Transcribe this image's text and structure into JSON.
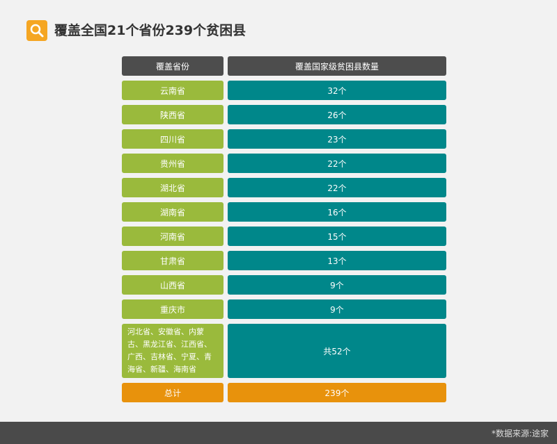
{
  "header": {
    "title": "覆盖全国21个省份239个贫困县"
  },
  "table": {
    "columns": [
      "覆盖省份",
      "覆盖国家级贫困县数量"
    ],
    "rows": [
      [
        "云南省",
        "32个"
      ],
      [
        "陕西省",
        "26个"
      ],
      [
        "四川省",
        "23个"
      ],
      [
        "贵州省",
        "22个"
      ],
      [
        "湖北省",
        "22个"
      ],
      [
        "湖南省",
        "16个"
      ],
      [
        "河南省",
        "15个"
      ],
      [
        "甘肃省",
        "13个"
      ],
      [
        "山西省",
        "9个"
      ],
      [
        "重庆市",
        "9个"
      ],
      [
        "河北省、安徽省、内蒙古、黑龙江省、江西省、广西、吉林省、宁夏、青海省、新疆、海南省",
        "共52个"
      ]
    ],
    "total": [
      "总计",
      "239个"
    ]
  },
  "footer": {
    "source": "*数据来源:途家"
  }
}
